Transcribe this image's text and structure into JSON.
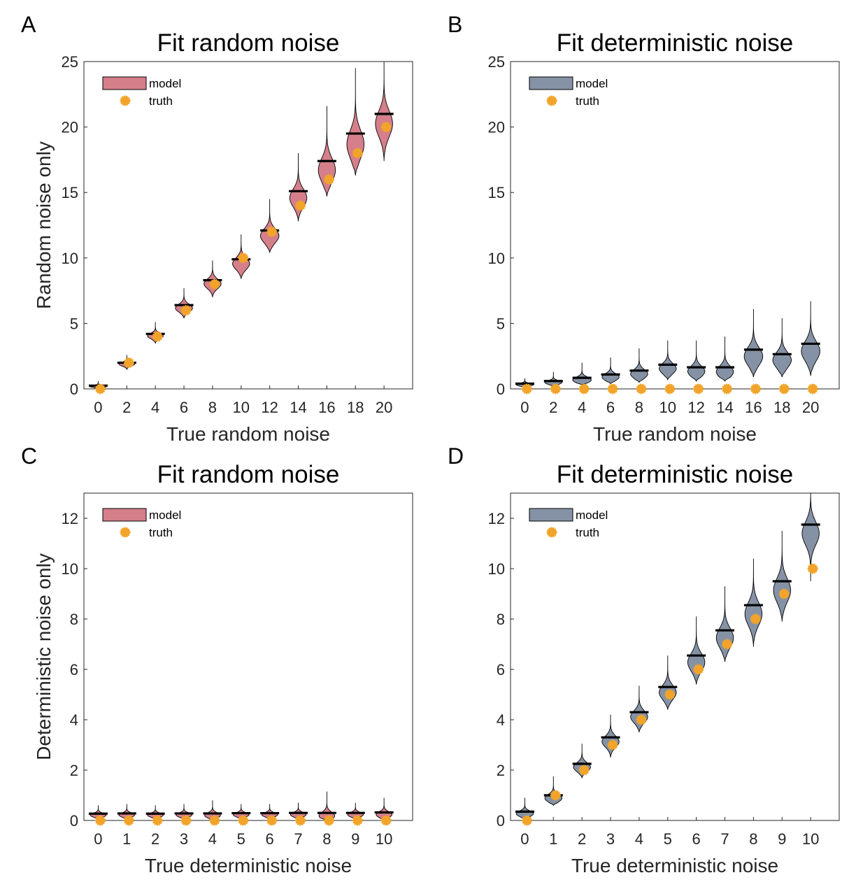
{
  "colors": {
    "random_model": "#D47F8A",
    "deterministic_model": "#8592A5",
    "truth": "#F2A42A",
    "median": "#000000"
  },
  "legend": {
    "model_label": "model",
    "truth_label": "truth",
    "placement": "top-left"
  },
  "chart_data": [
    {
      "panel": "A",
      "type": "violin",
      "title": "Fit random noise",
      "xlabel": "True random noise",
      "ylabel": "Random noise only",
      "ylim": [
        0,
        25
      ],
      "yticks": [
        0,
        5,
        10,
        15,
        20,
        25
      ],
      "x": [
        0,
        2,
        4,
        6,
        8,
        10,
        12,
        14,
        16,
        18,
        20
      ],
      "series": [
        {
          "name": "model",
          "color_key": "random_model",
          "median": [
            0.25,
            2.0,
            4.2,
            6.4,
            8.3,
            9.9,
            12.1,
            15.1,
            17.4,
            19.5,
            21.0
          ],
          "min": [
            0.0,
            1.5,
            3.5,
            5.4,
            7.0,
            8.4,
            10.4,
            12.8,
            14.7,
            16.3,
            17.4
          ],
          "max": [
            0.6,
            2.6,
            5.1,
            7.7,
            9.8,
            11.8,
            14.5,
            18.0,
            21.6,
            24.5,
            25.0
          ],
          "width": [
            0.6,
            0.55,
            0.55,
            0.6,
            0.6,
            0.6,
            0.65,
            0.6,
            0.6,
            0.6,
            0.6
          ]
        },
        {
          "name": "truth",
          "color_key": "truth",
          "values": [
            0,
            2,
            4,
            6,
            8,
            10,
            12,
            14,
            16,
            18,
            20
          ]
        }
      ]
    },
    {
      "panel": "B",
      "type": "violin",
      "title": "Fit deterministic noise",
      "xlabel": "True random noise",
      "ylabel": "",
      "ylim": [
        0,
        25
      ],
      "yticks": [
        0,
        5,
        10,
        15,
        20,
        25
      ],
      "x": [
        0,
        2,
        4,
        6,
        8,
        10,
        12,
        14,
        16,
        18,
        20
      ],
      "series": [
        {
          "name": "model",
          "color_key": "deterministic_model",
          "median": [
            0.4,
            0.6,
            0.85,
            1.1,
            1.4,
            1.85,
            1.65,
            1.65,
            3.0,
            2.65,
            3.45
          ],
          "min": [
            0.0,
            0.2,
            0.3,
            0.4,
            0.5,
            0.7,
            0.6,
            0.6,
            0.9,
            0.9,
            1.0
          ],
          "max": [
            0.8,
            1.3,
            2.0,
            2.4,
            3.1,
            3.7,
            3.7,
            4.0,
            6.1,
            5.4,
            6.7
          ],
          "width": [
            0.6,
            0.6,
            0.65,
            0.6,
            0.6,
            0.6,
            0.6,
            0.6,
            0.65,
            0.65,
            0.65
          ]
        },
        {
          "name": "truth",
          "color_key": "truth",
          "values": [
            0,
            0,
            0,
            0,
            0,
            0,
            0,
            0,
            0,
            0,
            0
          ]
        }
      ]
    },
    {
      "panel": "C",
      "type": "violin",
      "title": "Fit random noise",
      "xlabel": "True deterministic noise",
      "ylabel": "Deterministic noise only",
      "ylim": [
        0,
        13
      ],
      "yticks": [
        0,
        2,
        4,
        6,
        8,
        10,
        12
      ],
      "x": [
        0,
        1,
        2,
        3,
        4,
        5,
        6,
        7,
        8,
        9,
        10
      ],
      "series": [
        {
          "name": "model",
          "color_key": "random_model",
          "median": [
            0.27,
            0.28,
            0.27,
            0.28,
            0.28,
            0.29,
            0.29,
            0.3,
            0.3,
            0.3,
            0.32
          ],
          "min": [
            0.0,
            0.0,
            0.0,
            0.0,
            0.0,
            0.0,
            0.0,
            0.0,
            0.0,
            0.0,
            0.0
          ],
          "max": [
            0.6,
            0.65,
            0.6,
            0.65,
            0.8,
            0.65,
            0.65,
            0.7,
            1.15,
            0.7,
            0.9
          ],
          "width": [
            0.55,
            0.55,
            0.55,
            0.55,
            0.55,
            0.55,
            0.55,
            0.55,
            0.55,
            0.55,
            0.55
          ]
        },
        {
          "name": "truth",
          "color_key": "truth",
          "values": [
            0,
            0,
            0,
            0,
            0,
            0,
            0,
            0,
            0,
            0,
            0
          ]
        }
      ]
    },
    {
      "panel": "D",
      "type": "violin",
      "title": "Fit deterministic noise",
      "xlabel": "True deterministic noise",
      "ylabel": "",
      "ylim": [
        0,
        13
      ],
      "yticks": [
        0,
        2,
        4,
        6,
        8,
        10,
        12
      ],
      "x": [
        0,
        1,
        2,
        3,
        4,
        5,
        6,
        7,
        8,
        9,
        10
      ],
      "series": [
        {
          "name": "model",
          "color_key": "deterministic_model",
          "median": [
            0.35,
            1.0,
            2.25,
            3.3,
            4.3,
            5.3,
            6.55,
            7.55,
            8.55,
            9.5,
            11.75
          ],
          "min": [
            0.05,
            0.6,
            1.7,
            2.5,
            3.5,
            4.4,
            5.4,
            6.3,
            6.9,
            7.9,
            9.5
          ],
          "max": [
            0.9,
            1.75,
            3.05,
            4.2,
            5.35,
            6.55,
            8.1,
            9.3,
            10.4,
            11.5,
            13.0
          ],
          "width": [
            0.6,
            0.6,
            0.6,
            0.6,
            0.6,
            0.6,
            0.6,
            0.6,
            0.6,
            0.6,
            0.6
          ]
        },
        {
          "name": "truth",
          "color_key": "truth",
          "values": [
            0,
            1,
            2,
            3,
            4,
            5,
            6,
            7,
            8,
            9,
            10
          ]
        }
      ]
    }
  ]
}
